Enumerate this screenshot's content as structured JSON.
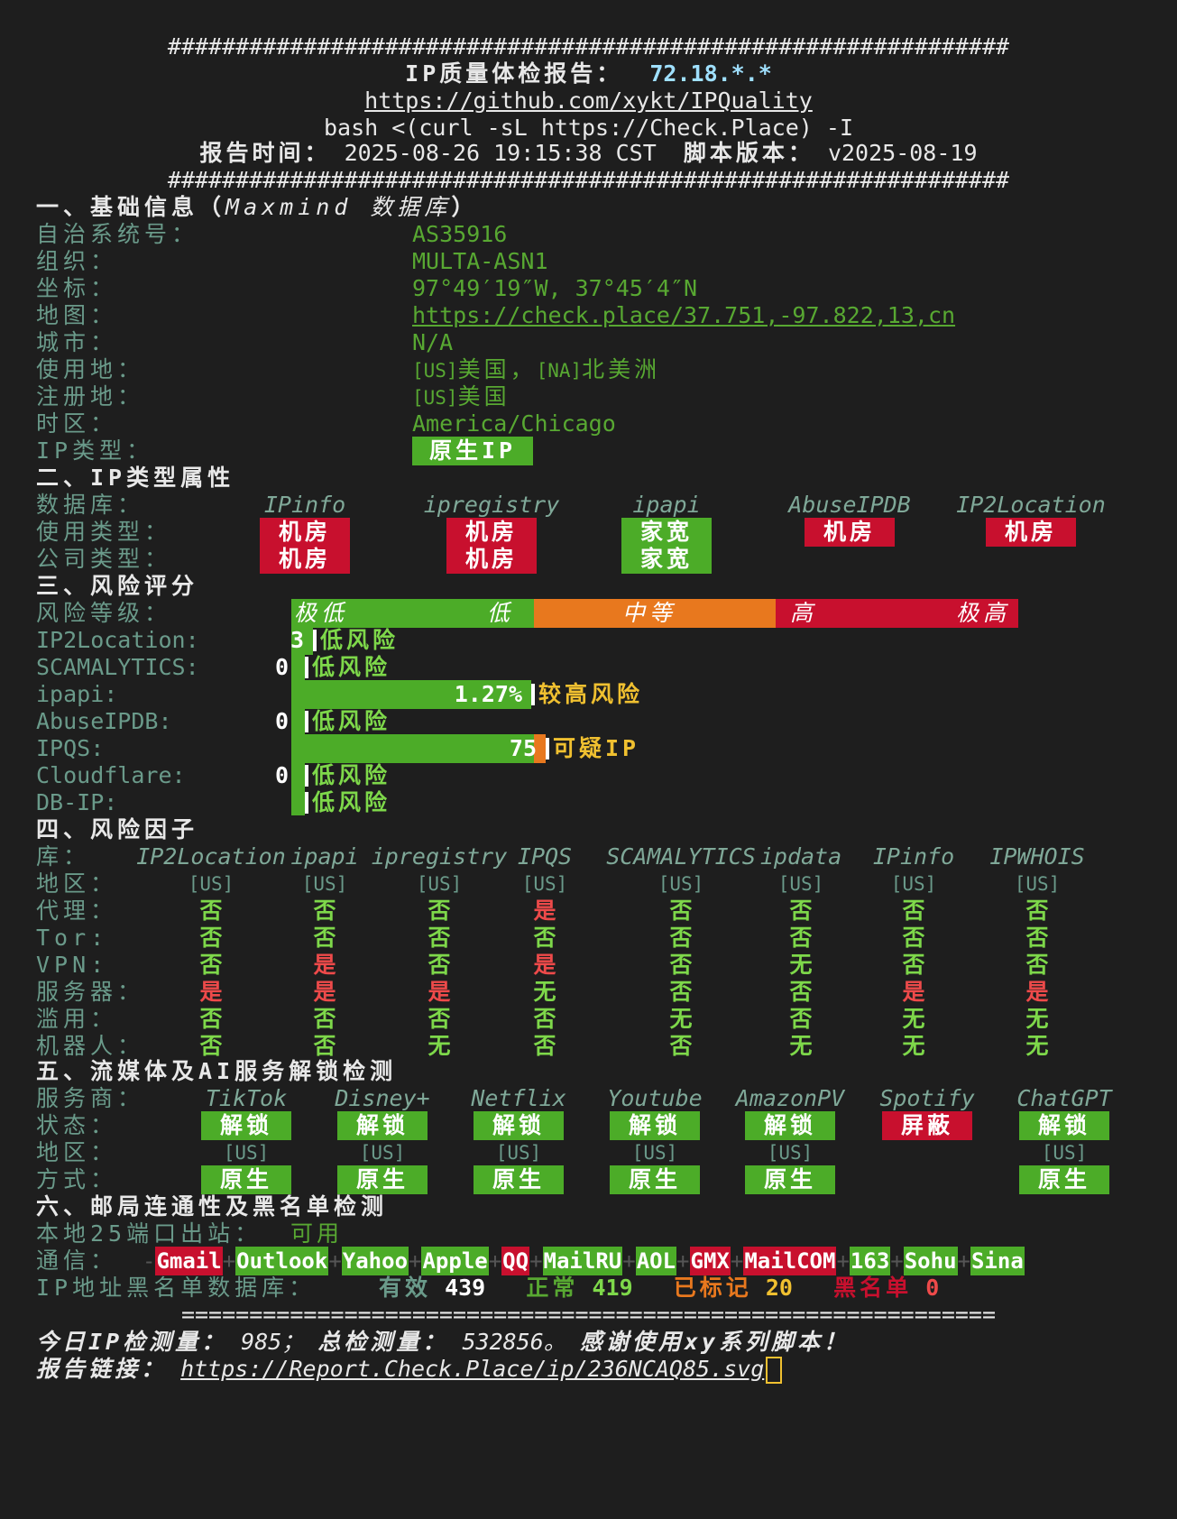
{
  "header": {
    "hash_line": "##############################################################",
    "title": "IP质量体检报告：",
    "ip": "72.18.*.*",
    "repo_url": "https://github.com/xykt/IPQuality",
    "command": "bash <(curl -sL https://Check.Place) -I",
    "time_label": "报告时间：",
    "time_value": "2025-08-26 19:15:38 CST",
    "version_label": "脚本版本：",
    "version_value": "v2025-08-19"
  },
  "basic": {
    "section": "一、基础信息（",
    "section_src": "Maxmind 数据库",
    "section_end": "）",
    "asn_label": "自治系统号：",
    "asn": "AS35916",
    "org_label": "组织：",
    "org": "MULTA-ASN1",
    "coord_label": "坐标：",
    "coord": "97°49′19″W, 37°45′4″N",
    "map_label": "地图：",
    "map": "https://check.place/37.751,-97.822,13,cn",
    "city_label": "城市：",
    "city": "N/A",
    "use_label": "使用地：",
    "use_cc1": "[US]",
    "use_v1": "美国，",
    "use_cc2": "[NA]",
    "use_v2": "北美洲",
    "reg_label": "注册地：",
    "reg_cc": "[US]",
    "reg_v": "美国",
    "tz_label": "时区：",
    "tz": "America/Chicago",
    "type_label": "IP类型：",
    "type": "原生IP"
  },
  "ip_type": {
    "section": "二、IP类型属性",
    "db_label": "数据库：",
    "use_label": "使用类型：",
    "company_label": "公司类型：",
    "dbs": [
      "IPinfo",
      "ipregistry",
      "ipapi",
      "AbuseIPDB",
      "IP2Location"
    ],
    "usage": [
      "机房",
      "机房",
      "家宽",
      "机房",
      "机房"
    ],
    "company": [
      "机房",
      "机房",
      "家宽",
      "",
      ""
    ]
  },
  "risk": {
    "section": "三、风险评分",
    "level_label": "风险等级：",
    "levels": [
      "极低",
      "低",
      "中等",
      "高",
      "极高"
    ],
    "rows": [
      {
        "label": "IP2Location:",
        "value": "3",
        "text": "低风险",
        "fraction": 0.03
      },
      {
        "label": "SCAMALYTICS:",
        "value": "0",
        "text": "低风险",
        "fraction": 0
      },
      {
        "label": "ipapi:",
        "value": "1.27%",
        "text": "较高风险",
        "fraction": 0.33
      },
      {
        "label": "AbuseIPDB:",
        "value": "0",
        "text": "低风险",
        "fraction": 0
      },
      {
        "label": "IPQS:",
        "value": "75",
        "text": "可疑IP",
        "fraction": 0.35
      },
      {
        "label": "Cloudflare:",
        "value": "0",
        "text": "低风险",
        "fraction": 0
      },
      {
        "label": "DB-IP:",
        "value": "",
        "text": "低风险",
        "fraction": 0
      }
    ]
  },
  "factors": {
    "section": "四、风险因子",
    "lib_label": "库：",
    "libs": [
      "IP2Location",
      "ipapi",
      "ipregistry",
      "IPQS",
      "SCAMALYTICS",
      "ipdata",
      "IPinfo",
      "IPWHOIS"
    ],
    "rows": [
      {
        "label": "地区：",
        "values": [
          "[US]",
          "[US]",
          "[US]",
          "[US]",
          "[US]",
          "[US]",
          "[US]",
          "[US]"
        ]
      },
      {
        "label": "代理：",
        "values": [
          "否",
          "否",
          "否",
          "是",
          "否",
          "否",
          "否",
          "否"
        ]
      },
      {
        "label": "Tor:",
        "values": [
          "否",
          "否",
          "否",
          "否",
          "否",
          "否",
          "否",
          "否"
        ]
      },
      {
        "label": "VPN:",
        "values": [
          "否",
          "是",
          "否",
          "是",
          "否",
          "无",
          "否",
          "否"
        ]
      },
      {
        "label": "服务器：",
        "values": [
          "是",
          "是",
          "是",
          "无",
          "否",
          "否",
          "是",
          "是"
        ]
      },
      {
        "label": "滥用：",
        "values": [
          "否",
          "否",
          "否",
          "否",
          "无",
          "否",
          "无",
          "无"
        ]
      },
      {
        "label": "机器人：",
        "values": [
          "否",
          "否",
          "无",
          "否",
          "否",
          "无",
          "无",
          "无"
        ]
      }
    ]
  },
  "streaming": {
    "section": "五、流媒体及AI服务解锁检测",
    "provider_label": "服务商：",
    "status_label": "状态：",
    "region_label": "地区：",
    "method_label": "方式：",
    "services": [
      {
        "name": "TikTok",
        "status": "解锁",
        "ok": true,
        "region": "[US]",
        "method": "原生"
      },
      {
        "name": "Disney+",
        "status": "解锁",
        "ok": true,
        "region": "[US]",
        "method": "原生"
      },
      {
        "name": "Netflix",
        "status": "解锁",
        "ok": true,
        "region": "[US]",
        "method": "原生"
      },
      {
        "name": "Youtube",
        "status": "解锁",
        "ok": true,
        "region": "[US]",
        "method": "原生"
      },
      {
        "name": "AmazonPV",
        "status": "解锁",
        "ok": true,
        "region": "[US]",
        "method": "原生"
      },
      {
        "name": "Spotify",
        "status": "屏蔽",
        "ok": false,
        "region": "",
        "method": ""
      },
      {
        "name": "ChatGPT",
        "status": "解锁",
        "ok": true,
        "region": "[US]",
        "method": "原生"
      }
    ]
  },
  "mail": {
    "section": "六、邮局连通性及黑名单检测",
    "port_label": "本地25端口出站：",
    "port_value": "可用",
    "comm_label": "通信：",
    "providers": [
      {
        "name": "Gmail",
        "ok": false
      },
      {
        "name": "Outlook",
        "ok": true
      },
      {
        "name": "Yahoo",
        "ok": true
      },
      {
        "name": "Apple",
        "ok": true
      },
      {
        "name": "QQ",
        "ok": false
      },
      {
        "name": "MailRU",
        "ok": true
      },
      {
        "name": "AOL",
        "ok": true
      },
      {
        "name": "GMX",
        "ok": false
      },
      {
        "name": "MailCOM",
        "ok": false
      },
      {
        "name": "163",
        "ok": true
      },
      {
        "name": "Sohu",
        "ok": true
      },
      {
        "name": "Sina",
        "ok": true
      }
    ],
    "bl_label": "IP地址黑名单数据库：",
    "valid_label": "有效",
    "valid": "439",
    "normal_label": "正常",
    "normal": "419",
    "marked_label": "已标记",
    "marked": "20",
    "black_label": "黑名单",
    "black": "0"
  },
  "footer": {
    "eq_line": "============================================================",
    "today_label": "今日IP检测量：",
    "today": "985；",
    "total_label": "总检测量：",
    "total": "532856。",
    "thanks": "感谢使用xy系列脚本！",
    "link_label": "报告链接：",
    "link": "https://Report.Check.Place/ip/236NCAQ85.svg"
  },
  "colors": {
    "green": "#4cac28",
    "red": "#c8102e",
    "orange": "#e8781e",
    "label": "#6a9a8a"
  }
}
